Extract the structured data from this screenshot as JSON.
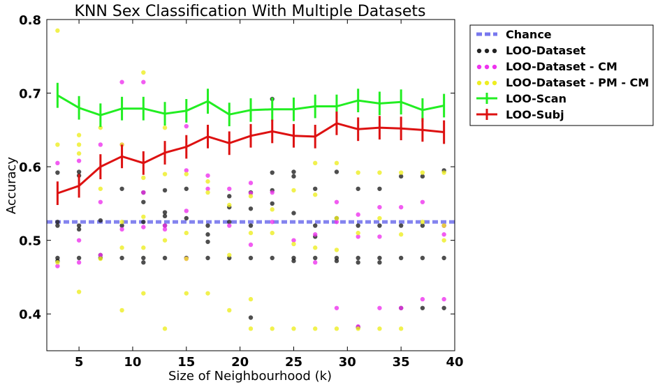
{
  "chart_data": {
    "type": "scatter",
    "title": "KNN Sex Classification With Multiple Datasets",
    "xlabel": "Size of Neighbourhood (k)",
    "ylabel": "Accuracy",
    "xlim": [
      2,
      40
    ],
    "ylim": [
      0.35,
      0.8
    ],
    "xticks": [
      5,
      10,
      15,
      20,
      25,
      30,
      35,
      40
    ],
    "yticks": [
      0.4,
      0.5,
      0.6,
      0.7,
      0.8
    ],
    "grid": false,
    "legend_position": "outside-top-right",
    "chance": {
      "name": "Chance",
      "value": 0.525,
      "color": "#7777ee"
    },
    "point_series": [
      {
        "name": "LOO-Dataset",
        "color": "#222222",
        "points": [
          [
            3,
            0.592
          ],
          [
            3,
            0.525
          ],
          [
            3,
            0.52
          ],
          [
            3,
            0.476
          ],
          [
            3,
            0.472
          ],
          [
            5,
            0.593
          ],
          [
            5,
            0.588
          ],
          [
            5,
            0.52
          ],
          [
            5,
            0.515
          ],
          [
            5,
            0.476
          ],
          [
            7,
            0.527
          ],
          [
            7,
            0.48
          ],
          [
            7,
            0.476
          ],
          [
            9,
            0.57
          ],
          [
            9,
            0.52
          ],
          [
            9,
            0.476
          ],
          [
            11,
            0.565
          ],
          [
            11,
            0.552
          ],
          [
            11,
            0.525
          ],
          [
            11,
            0.476
          ],
          [
            11,
            0.47
          ],
          [
            13,
            0.568
          ],
          [
            13,
            0.538
          ],
          [
            13,
            0.533
          ],
          [
            13,
            0.52
          ],
          [
            13,
            0.476
          ],
          [
            15,
            0.57
          ],
          [
            15,
            0.53
          ],
          [
            15,
            0.476
          ],
          [
            17,
            0.52
          ],
          [
            17,
            0.508
          ],
          [
            17,
            0.498
          ],
          [
            17,
            0.476
          ],
          [
            19,
            0.56
          ],
          [
            19,
            0.545
          ],
          [
            19,
            0.525
          ],
          [
            19,
            0.476
          ],
          [
            21,
            0.565
          ],
          [
            21,
            0.543
          ],
          [
            21,
            0.52
          ],
          [
            21,
            0.476
          ],
          [
            21,
            0.395
          ],
          [
            23,
            0.692
          ],
          [
            23,
            0.592
          ],
          [
            23,
            0.568
          ],
          [
            23,
            0.55
          ],
          [
            23,
            0.476
          ],
          [
            25,
            0.593
          ],
          [
            25,
            0.587
          ],
          [
            25,
            0.537
          ],
          [
            25,
            0.476
          ],
          [
            25,
            0.472
          ],
          [
            27,
            0.57
          ],
          [
            27,
            0.52
          ],
          [
            27,
            0.505
          ],
          [
            27,
            0.476
          ],
          [
            29,
            0.593
          ],
          [
            29,
            0.53
          ],
          [
            29,
            0.476
          ],
          [
            29,
            0.472
          ],
          [
            31,
            0.57
          ],
          [
            31,
            0.52
          ],
          [
            31,
            0.476
          ],
          [
            31,
            0.47
          ],
          [
            31,
            0.382
          ],
          [
            33,
            0.57
          ],
          [
            33,
            0.52
          ],
          [
            33,
            0.476
          ],
          [
            33,
            0.47
          ],
          [
            35,
            0.587
          ],
          [
            35,
            0.52
          ],
          [
            35,
            0.476
          ],
          [
            35,
            0.408
          ],
          [
            37,
            0.587
          ],
          [
            37,
            0.52
          ],
          [
            37,
            0.476
          ],
          [
            37,
            0.408
          ],
          [
            39,
            0.595
          ],
          [
            39,
            0.52
          ],
          [
            39,
            0.476
          ],
          [
            39,
            0.408
          ]
        ]
      },
      {
        "name": "LOO-Dataset - CM",
        "color": "#ee33ee",
        "points": [
          [
            3,
            0.605
          ],
          [
            3,
            0.465
          ],
          [
            5,
            0.608
          ],
          [
            5,
            0.5
          ],
          [
            5,
            0.47
          ],
          [
            7,
            0.63
          ],
          [
            7,
            0.552
          ],
          [
            7,
            0.48
          ],
          [
            9,
            0.715
          ],
          [
            9,
            0.63
          ],
          [
            9,
            0.515
          ],
          [
            11,
            0.715
          ],
          [
            11,
            0.565
          ],
          [
            11,
            0.518
          ],
          [
            13,
            0.515
          ],
          [
            13,
            0.52
          ],
          [
            15,
            0.655
          ],
          [
            15,
            0.595
          ],
          [
            15,
            0.54
          ],
          [
            15,
            0.475
          ],
          [
            17,
            0.588
          ],
          [
            17,
            0.57
          ],
          [
            19,
            0.57
          ],
          [
            19,
            0.52
          ],
          [
            21,
            0.578
          ],
          [
            21,
            0.564
          ],
          [
            21,
            0.494
          ],
          [
            23,
            0.565
          ],
          [
            23,
            0.525
          ],
          [
            25,
            0.5
          ],
          [
            27,
            0.508
          ],
          [
            27,
            0.47
          ],
          [
            29,
            0.552
          ],
          [
            29,
            0.525
          ],
          [
            29,
            0.408
          ],
          [
            31,
            0.535
          ],
          [
            31,
            0.505
          ],
          [
            31,
            0.383
          ],
          [
            33,
            0.545
          ],
          [
            33,
            0.505
          ],
          [
            33,
            0.408
          ],
          [
            35,
            0.545
          ],
          [
            35,
            0.408
          ],
          [
            37,
            0.552
          ],
          [
            37,
            0.42
          ],
          [
            39,
            0.52
          ],
          [
            39,
            0.508
          ],
          [
            39,
            0.42
          ]
        ]
      },
      {
        "name": "LOO-Dataset - PM - CM",
        "color": "#eeee22",
        "points": [
          [
            3,
            0.785
          ],
          [
            3,
            0.63
          ],
          [
            3,
            0.47
          ],
          [
            5,
            0.643
          ],
          [
            5,
            0.63
          ],
          [
            5,
            0.618
          ],
          [
            5,
            0.43
          ],
          [
            7,
            0.653
          ],
          [
            7,
            0.57
          ],
          [
            7,
            0.475
          ],
          [
            9,
            0.63
          ],
          [
            9,
            0.525
          ],
          [
            9,
            0.49
          ],
          [
            9,
            0.405
          ],
          [
            11,
            0.728
          ],
          [
            11,
            0.585
          ],
          [
            11,
            0.532
          ],
          [
            11,
            0.49
          ],
          [
            11,
            0.428
          ],
          [
            13,
            0.653
          ],
          [
            13,
            0.59
          ],
          [
            13,
            0.5
          ],
          [
            13,
            0.38
          ],
          [
            15,
            0.59
          ],
          [
            15,
            0.51
          ],
          [
            15,
            0.475
          ],
          [
            15,
            0.428
          ],
          [
            17,
            0.58
          ],
          [
            17,
            0.565
          ],
          [
            17,
            0.428
          ],
          [
            19,
            0.548
          ],
          [
            19,
            0.48
          ],
          [
            19,
            0.405
          ],
          [
            21,
            0.56
          ],
          [
            21,
            0.51
          ],
          [
            21,
            0.42
          ],
          [
            21,
            0.38
          ],
          [
            23,
            0.542
          ],
          [
            23,
            0.51
          ],
          [
            23,
            0.38
          ],
          [
            25,
            0.568
          ],
          [
            25,
            0.495
          ],
          [
            25,
            0.38
          ],
          [
            27,
            0.605
          ],
          [
            27,
            0.562
          ],
          [
            27,
            0.49
          ],
          [
            27,
            0.38
          ],
          [
            29,
            0.605
          ],
          [
            29,
            0.53
          ],
          [
            29,
            0.487
          ],
          [
            29,
            0.38
          ],
          [
            31,
            0.592
          ],
          [
            31,
            0.51
          ],
          [
            31,
            0.38
          ],
          [
            33,
            0.592
          ],
          [
            33,
            0.53
          ],
          [
            33,
            0.38
          ],
          [
            35,
            0.592
          ],
          [
            35,
            0.508
          ],
          [
            35,
            0.38
          ],
          [
            37,
            0.592
          ],
          [
            37,
            0.525
          ],
          [
            39,
            0.592
          ],
          [
            39,
            0.52
          ],
          [
            39,
            0.5
          ]
        ]
      }
    ],
    "line_series": [
      {
        "name": "LOO-Scan",
        "color": "#22ee22",
        "x": [
          3,
          5,
          7,
          9,
          11,
          13,
          15,
          17,
          19,
          21,
          23,
          25,
          27,
          29,
          31,
          33,
          35,
          37,
          39
        ],
        "y": [
          0.697,
          0.68,
          0.67,
          0.679,
          0.679,
          0.672,
          0.676,
          0.689,
          0.671,
          0.677,
          0.678,
          0.678,
          0.682,
          0.682,
          0.69,
          0.686,
          0.688,
          0.677,
          0.683
        ],
        "err": [
          0.017,
          0.016,
          0.016,
          0.016,
          0.016,
          0.016,
          0.016,
          0.017,
          0.016,
          0.016,
          0.016,
          0.016,
          0.016,
          0.016,
          0.016,
          0.016,
          0.017,
          0.016,
          0.016
        ]
      },
      {
        "name": "LOO-Subj",
        "color": "#dd1111",
        "x": [
          3,
          5,
          7,
          9,
          11,
          13,
          15,
          17,
          19,
          21,
          23,
          25,
          27,
          29,
          31,
          33,
          35,
          37,
          39
        ],
        "y": [
          0.564,
          0.574,
          0.6,
          0.614,
          0.605,
          0.619,
          0.627,
          0.641,
          0.632,
          0.642,
          0.648,
          0.642,
          0.641,
          0.659,
          0.651,
          0.653,
          0.652,
          0.65,
          0.647
        ],
        "err": [
          0.016,
          0.016,
          0.017,
          0.016,
          0.016,
          0.016,
          0.016,
          0.016,
          0.016,
          0.016,
          0.016,
          0.016,
          0.016,
          0.016,
          0.016,
          0.016,
          0.016,
          0.016,
          0.016
        ]
      }
    ]
  }
}
